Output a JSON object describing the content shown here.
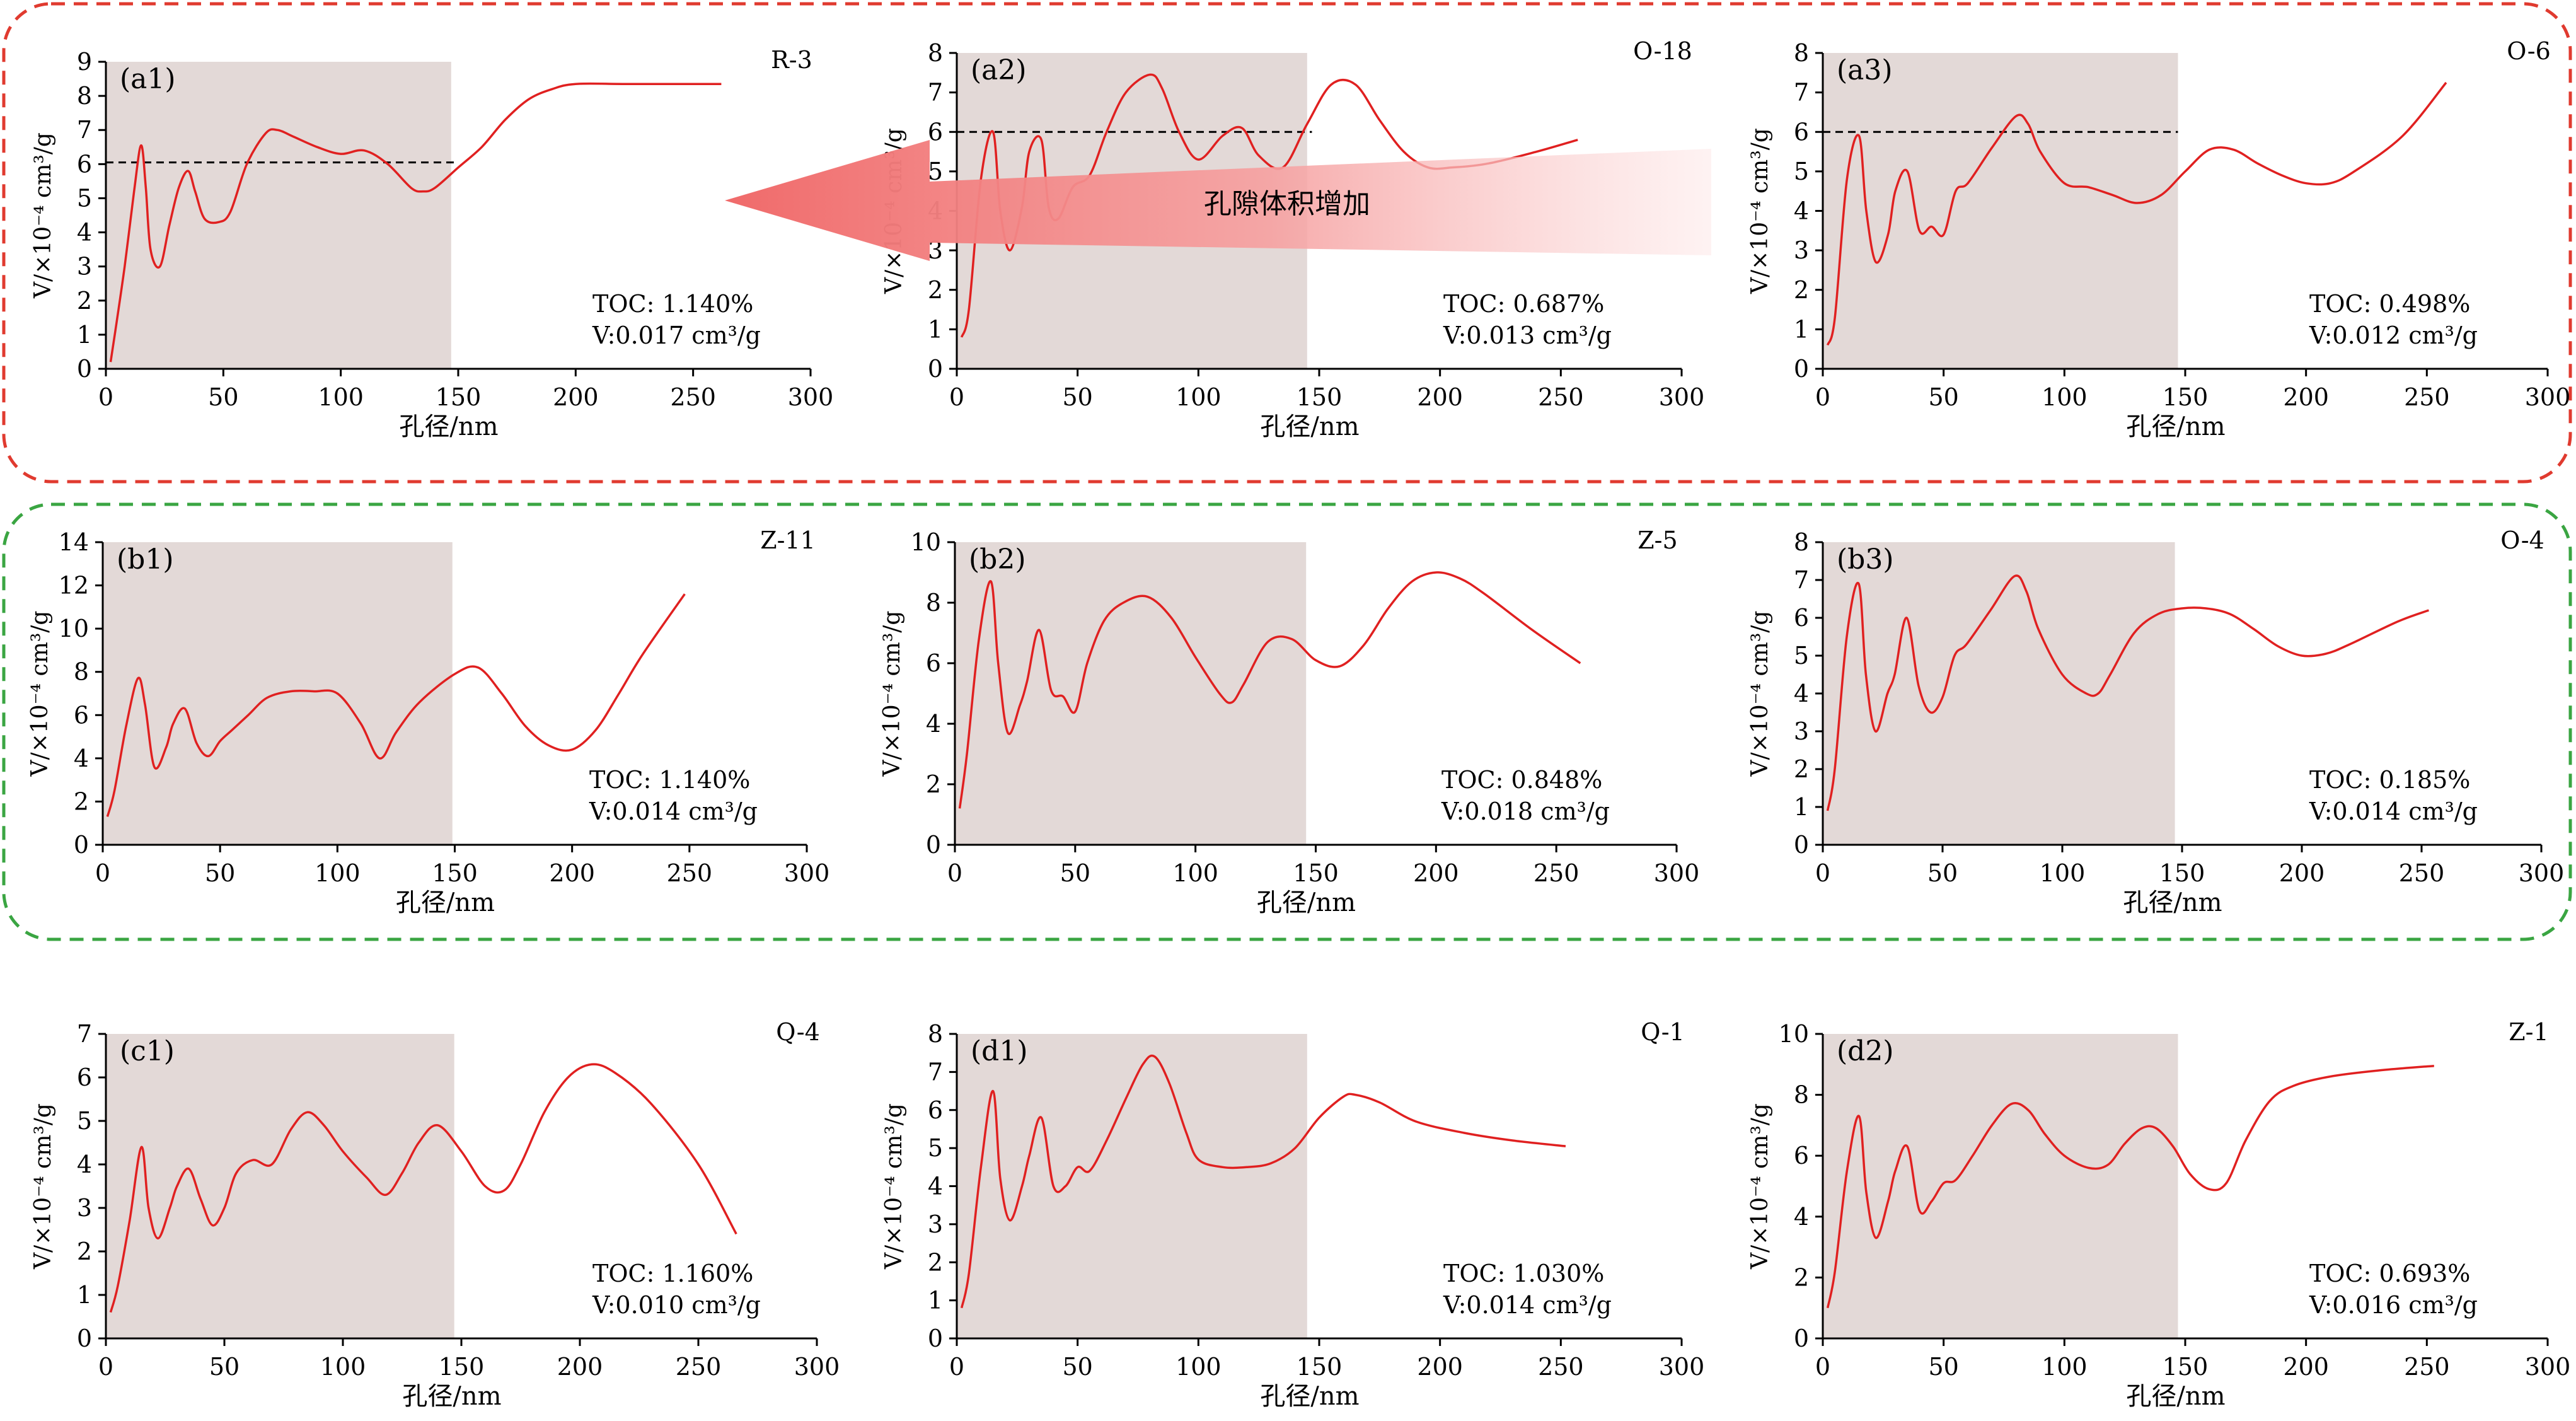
{
  "figure": {
    "arrow_label": "孔隙体积增加",
    "colors": {
      "curve": "#e02020",
      "shade": "#e3d9d7",
      "group_a_frame": "#e03a2f",
      "group_b_frame": "#3aa542",
      "arrow": "#f06a6a",
      "reference_line": "#000000"
    }
  },
  "chart_data": [
    {
      "id": "a1",
      "panel_label": "(a1)",
      "sample": "R-3",
      "toc_text": "TOC: 1.140%",
      "v_text": "V:0.017 cm³/g",
      "type": "line",
      "xlabel": "孔径/nm",
      "ylabel": "V/×10⁻⁴ cm³/g",
      "xlim": [
        0,
        300
      ],
      "ylim": [
        0,
        9
      ],
      "x_ticks": [
        0,
        50,
        100,
        150,
        200,
        250,
        300
      ],
      "y_ticks": [
        0,
        1,
        2,
        3,
        4,
        5,
        6,
        7,
        8,
        9
      ],
      "shade_range": [
        0,
        147
      ],
      "reference_line": {
        "y": 6.05,
        "x": [
          0,
          150
        ]
      },
      "x": [
        2,
        4,
        8,
        12,
        15,
        17,
        19,
        23,
        27,
        31,
        35,
        38,
        42,
        48,
        53,
        60,
        68,
        73,
        80,
        90,
        100,
        110,
        120,
        130,
        135,
        140,
        150,
        160,
        170,
        180,
        190,
        200,
        220,
        240,
        262
      ],
      "y": [
        0.2,
        1.1,
        3.0,
        5.2,
        6.55,
        5.3,
        3.5,
        3.0,
        4.2,
        5.3,
        5.8,
        5.2,
        4.4,
        4.3,
        4.6,
        6.0,
        6.9,
        7.0,
        6.8,
        6.5,
        6.3,
        6.4,
        6.0,
        5.3,
        5.2,
        5.3,
        5.9,
        6.5,
        7.3,
        7.9,
        8.2,
        8.35,
        8.35,
        8.35,
        8.35
      ]
    },
    {
      "id": "a2",
      "panel_label": "(a2)",
      "sample": "O-18",
      "toc_text": "TOC: 0.687%",
      "v_text": "V:0.013 cm³/g",
      "type": "line",
      "xlabel": "孔径/nm",
      "ylabel": "V/×10⁻⁴ cm³/g",
      "xlim": [
        0,
        300
      ],
      "ylim": [
        0,
        8
      ],
      "x_ticks": [
        0,
        50,
        100,
        150,
        200,
        250,
        300
      ],
      "y_ticks": [
        0,
        1,
        2,
        3,
        4,
        5,
        6,
        7,
        8
      ],
      "shade_range": [
        0,
        145
      ],
      "reference_line": {
        "y": 6.0,
        "x": [
          0,
          147
        ]
      },
      "x": [
        2,
        5,
        10,
        15,
        18,
        22,
        27,
        30,
        35,
        38,
        42,
        48,
        55,
        62,
        70,
        80,
        85,
        92,
        100,
        110,
        118,
        125,
        135,
        145,
        155,
        165,
        175,
        185,
        195,
        205,
        220,
        240,
        257
      ],
      "y": [
        0.8,
        1.5,
        4.8,
        6.0,
        4.0,
        3.0,
        4.1,
        5.5,
        5.8,
        4.1,
        3.8,
        4.6,
        4.9,
        6.0,
        7.0,
        7.45,
        7.1,
        6.0,
        5.3,
        5.9,
        6.1,
        5.4,
        5.1,
        6.2,
        7.2,
        7.2,
        6.3,
        5.5,
        5.1,
        5.1,
        5.2,
        5.5,
        5.8
      ]
    },
    {
      "id": "a3",
      "panel_label": "(a3)",
      "sample": "O-6",
      "toc_text": "TOC: 0.498%",
      "v_text": "V:0.012 cm³/g",
      "type": "line",
      "xlabel": "孔径/nm",
      "ylabel": "V/×10⁻⁴ cm³/g",
      "xlim": [
        0,
        300
      ],
      "ylim": [
        0,
        8
      ],
      "x_ticks": [
        0,
        50,
        100,
        150,
        200,
        250,
        300
      ],
      "y_ticks": [
        0,
        1,
        2,
        3,
        4,
        5,
        6,
        7,
        8
      ],
      "shade_range": [
        0,
        147
      ],
      "reference_line": {
        "y": 6.0,
        "x": [
          0,
          147
        ]
      },
      "x": [
        2,
        5,
        10,
        15,
        18,
        22,
        27,
        30,
        35,
        40,
        45,
        50,
        55,
        60,
        70,
        80,
        85,
        90,
        100,
        110,
        120,
        130,
        140,
        150,
        160,
        170,
        180,
        190,
        200,
        210,
        220,
        240,
        258
      ],
      "y": [
        0.6,
        1.3,
        4.8,
        5.9,
        4.0,
        2.7,
        3.4,
        4.5,
        5.0,
        3.5,
        3.6,
        3.4,
        4.5,
        4.7,
        5.6,
        6.4,
        6.2,
        5.5,
        4.7,
        4.6,
        4.4,
        4.2,
        4.4,
        5.0,
        5.55,
        5.55,
        5.2,
        4.9,
        4.7,
        4.7,
        5.0,
        5.9,
        7.25
      ]
    },
    {
      "id": "b1",
      "panel_label": "(b1)",
      "sample": "Z-11",
      "toc_text": "TOC: 1.140%",
      "v_text": "V:0.014 cm³/g",
      "type": "line",
      "xlabel": "孔径/nm",
      "ylabel": "V/×10⁻⁴ cm³/g",
      "xlim": [
        0,
        300
      ],
      "ylim": [
        0,
        14
      ],
      "x_ticks": [
        0,
        50,
        100,
        150,
        200,
        250,
        300
      ],
      "y_ticks": [
        0,
        2,
        4,
        6,
        8,
        10,
        12,
        14
      ],
      "shade_range": [
        0,
        149
      ],
      "x": [
        2,
        5,
        10,
        15,
        18,
        22,
        27,
        30,
        35,
        40,
        45,
        50,
        55,
        62,
        70,
        80,
        90,
        100,
        110,
        118,
        125,
        135,
        150,
        160,
        170,
        180,
        190,
        200,
        210,
        220,
        230,
        248
      ],
      "y": [
        1.3,
        2.5,
        5.5,
        7.7,
        6.5,
        3.6,
        4.5,
        5.6,
        6.3,
        4.7,
        4.1,
        4.8,
        5.3,
        6.0,
        6.8,
        7.1,
        7.1,
        7.0,
        5.6,
        4.0,
        5.2,
        6.6,
        7.9,
        8.2,
        7.0,
        5.5,
        4.6,
        4.4,
        5.3,
        7.0,
        8.8,
        11.6
      ]
    },
    {
      "id": "b2",
      "panel_label": "(b2)",
      "sample": "Z-5",
      "toc_text": "TOC: 0.848%",
      "v_text": "V:0.018 cm³/g",
      "type": "line",
      "xlabel": "孔径/nm",
      "ylabel": "V/×10⁻⁴ cm³/g",
      "xlim": [
        0,
        300
      ],
      "ylim": [
        0,
        10
      ],
      "x_ticks": [
        0,
        50,
        100,
        150,
        200,
        250,
        300
      ],
      "y_ticks": [
        0,
        2,
        4,
        6,
        8,
        10
      ],
      "shade_range": [
        0,
        146
      ],
      "x": [
        2,
        5,
        10,
        15,
        18,
        22,
        27,
        30,
        35,
        40,
        45,
        50,
        55,
        62,
        70,
        80,
        90,
        100,
        110,
        115,
        120,
        130,
        140,
        150,
        160,
        170,
        180,
        190,
        200,
        210,
        220,
        240,
        260
      ],
      "y": [
        1.2,
        3.0,
        6.8,
        8.7,
        6.0,
        3.7,
        4.6,
        5.4,
        7.1,
        5.1,
        4.9,
        4.4,
        6.0,
        7.4,
        8.0,
        8.2,
        7.5,
        6.2,
        5.0,
        4.7,
        5.3,
        6.7,
        6.8,
        6.1,
        5.9,
        6.6,
        7.8,
        8.7,
        9.0,
        8.8,
        8.3,
        7.1,
        6.0
      ]
    },
    {
      "id": "b3",
      "panel_label": "(b3)",
      "sample": "O-4",
      "toc_text": "TOC: 0.185%",
      "v_text": "V:0.014 cm³/g",
      "type": "line",
      "xlabel": "孔径/nm",
      "ylabel": "V/×10⁻⁴ cm³/g",
      "xlim": [
        0,
        300
      ],
      "ylim": [
        0,
        8
      ],
      "x_ticks": [
        0,
        50,
        100,
        150,
        200,
        250,
        300
      ],
      "y_ticks": [
        0,
        1,
        2,
        3,
        4,
        5,
        6,
        7,
        8
      ],
      "shade_range": [
        0,
        147
      ],
      "x": [
        2,
        5,
        10,
        15,
        18,
        22,
        27,
        30,
        35,
        40,
        45,
        50,
        55,
        60,
        70,
        80,
        85,
        90,
        100,
        110,
        115,
        120,
        130,
        140,
        150,
        160,
        170,
        180,
        190,
        200,
        210,
        220,
        240,
        253
      ],
      "y": [
        0.9,
        2.0,
        5.5,
        6.9,
        4.5,
        3.0,
        4.0,
        4.5,
        6.0,
        4.2,
        3.5,
        3.9,
        5.0,
        5.3,
        6.2,
        7.1,
        6.7,
        5.7,
        4.5,
        4.0,
        4.0,
        4.5,
        5.6,
        6.1,
        6.25,
        6.25,
        6.1,
        5.7,
        5.25,
        5.0,
        5.05,
        5.3,
        5.9,
        6.2
      ]
    },
    {
      "id": "c1",
      "panel_label": "(c1)",
      "sample": "Q-4",
      "toc_text": "TOC: 1.160%",
      "v_text": "V:0.010 cm³/g",
      "type": "line",
      "xlabel": "孔径/nm",
      "ylabel": "V/×10⁻⁴ cm³/g",
      "xlim": [
        0,
        300
      ],
      "ylim": [
        0,
        7
      ],
      "x_ticks": [
        0,
        50,
        100,
        150,
        200,
        250,
        300
      ],
      "y_ticks": [
        0,
        1,
        2,
        3,
        4,
        5,
        6,
        7
      ],
      "shade_range": [
        0,
        147
      ],
      "x": [
        2,
        5,
        10,
        15,
        18,
        22,
        27,
        30,
        35,
        40,
        45,
        50,
        55,
        62,
        70,
        78,
        85,
        92,
        100,
        110,
        118,
        125,
        132,
        140,
        150,
        160,
        168,
        175,
        185,
        195,
        205,
        215,
        230,
        250,
        266
      ],
      "y": [
        0.6,
        1.2,
        2.7,
        4.4,
        3.0,
        2.3,
        3.0,
        3.5,
        3.9,
        3.2,
        2.6,
        3.0,
        3.8,
        4.1,
        4.0,
        4.8,
        5.2,
        4.9,
        4.3,
        3.7,
        3.3,
        3.8,
        4.5,
        4.9,
        4.3,
        3.5,
        3.4,
        4.0,
        5.2,
        6.0,
        6.3,
        6.1,
        5.4,
        4.0,
        2.4
      ]
    },
    {
      "id": "d1",
      "panel_label": "(d1)",
      "sample": "Q-1",
      "toc_text": "TOC: 1.030%",
      "v_text": "V:0.014 cm³/g",
      "type": "line",
      "xlabel": "孔径/nm",
      "ylabel": "V/×10⁻⁴ cm³/g",
      "xlim": [
        0,
        300
      ],
      "ylim": [
        0,
        8
      ],
      "x_ticks": [
        0,
        50,
        100,
        150,
        200,
        250,
        300
      ],
      "y_ticks": [
        0,
        1,
        2,
        3,
        4,
        5,
        6,
        7,
        8
      ],
      "shade_range": [
        0,
        145
      ],
      "x": [
        2,
        5,
        10,
        15,
        18,
        22,
        27,
        30,
        35,
        40,
        45,
        50,
        55,
        62,
        70,
        77,
        82,
        88,
        95,
        100,
        110,
        120,
        130,
        140,
        150,
        160,
        165,
        175,
        190,
        210,
        230,
        252
      ],
      "y": [
        0.8,
        1.7,
        4.5,
        6.5,
        4.2,
        3.1,
        4.0,
        4.8,
        5.8,
        4.0,
        4.0,
        4.5,
        4.4,
        5.2,
        6.3,
        7.2,
        7.4,
        6.7,
        5.4,
        4.7,
        4.5,
        4.5,
        4.6,
        5.0,
        5.8,
        6.35,
        6.4,
        6.2,
        5.7,
        5.4,
        5.2,
        5.05
      ]
    },
    {
      "id": "d2",
      "panel_label": "(d2)",
      "sample": "Z-1",
      "toc_text": "TOC: 0.693%",
      "v_text": "V:0.016 cm³/g",
      "type": "line",
      "xlabel": "孔径/nm",
      "ylabel": "V/×10⁻⁴ cm³/g",
      "xlim": [
        0,
        300
      ],
      "ylim": [
        0,
        10
      ],
      "x_ticks": [
        0,
        50,
        100,
        150,
        200,
        250,
        300
      ],
      "y_ticks": [
        0,
        2,
        4,
        6,
        8,
        10
      ],
      "shade_range": [
        0,
        147
      ],
      "x": [
        2,
        5,
        10,
        15,
        18,
        22,
        27,
        30,
        35,
        40,
        45,
        50,
        55,
        62,
        70,
        78,
        85,
        92,
        100,
        110,
        118,
        125,
        132,
        138,
        145,
        152,
        160,
        167,
        175,
        185,
        195,
        210,
        230,
        253
      ],
      "y": [
        1.0,
        2.2,
        5.5,
        7.3,
        4.8,
        3.3,
        4.5,
        5.5,
        6.3,
        4.2,
        4.5,
        5.1,
        5.2,
        6.0,
        7.0,
        7.7,
        7.5,
        6.7,
        6.0,
        5.6,
        5.7,
        6.4,
        6.9,
        6.9,
        6.3,
        5.4,
        4.9,
        5.1,
        6.5,
        7.8,
        8.3,
        8.6,
        8.8,
        8.95
      ]
    }
  ]
}
